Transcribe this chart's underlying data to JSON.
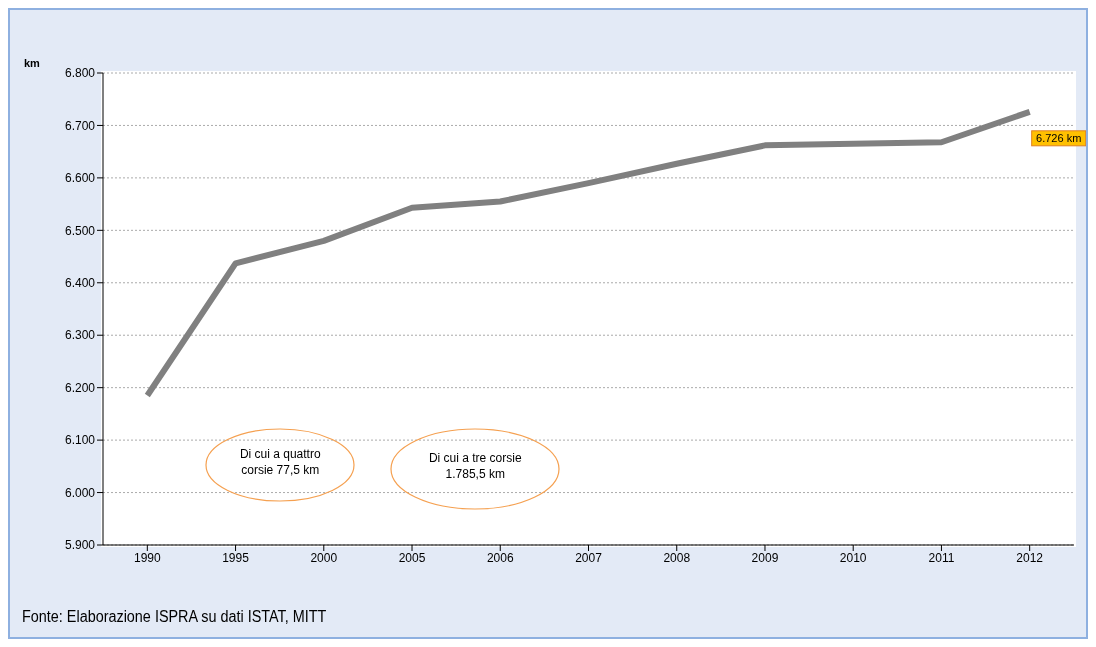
{
  "chart_data": {
    "type": "line",
    "ylabel": "km",
    "categories": [
      "1990",
      "1995",
      "2000",
      "2005",
      "2006",
      "2007",
      "2008",
      "2009",
      "2010",
      "2011",
      "2012"
    ],
    "series": [
      {
        "color": "#808080",
        "values": [
          6185,
          6437,
          6480,
          6543,
          6555,
          6590,
          6627,
          6662,
          6665,
          6668,
          6726
        ]
      }
    ],
    "ylim": [
      5900,
      6800
    ],
    "yticks": [
      {
        "value": 5900,
        "label": "5.900"
      },
      {
        "value": 6000,
        "label": "6.000"
      },
      {
        "value": 6100,
        "label": "6.100"
      },
      {
        "value": 6200,
        "label": "6.200"
      },
      {
        "value": 6300,
        "label": "6.300"
      },
      {
        "value": 6400,
        "label": "6.400"
      },
      {
        "value": 6500,
        "label": "6.500"
      },
      {
        "value": 6600,
        "label": "6.600"
      },
      {
        "value": 6700,
        "label": "6.700"
      },
      {
        "value": 6800,
        "label": "6.800"
      }
    ],
    "grid": "y",
    "marker": "none",
    "line_style": "solid",
    "annotations": [
      {
        "text": "6.726 km",
        "x": "2012",
        "y": 6726
      },
      "Di cui a quattro corsie 77,5 km",
      "Di cui a tre corsie 1.785,5 km",
      "Fonte: Elaborazione ISPRA su dati ISTAT, MITT"
    ]
  }
}
